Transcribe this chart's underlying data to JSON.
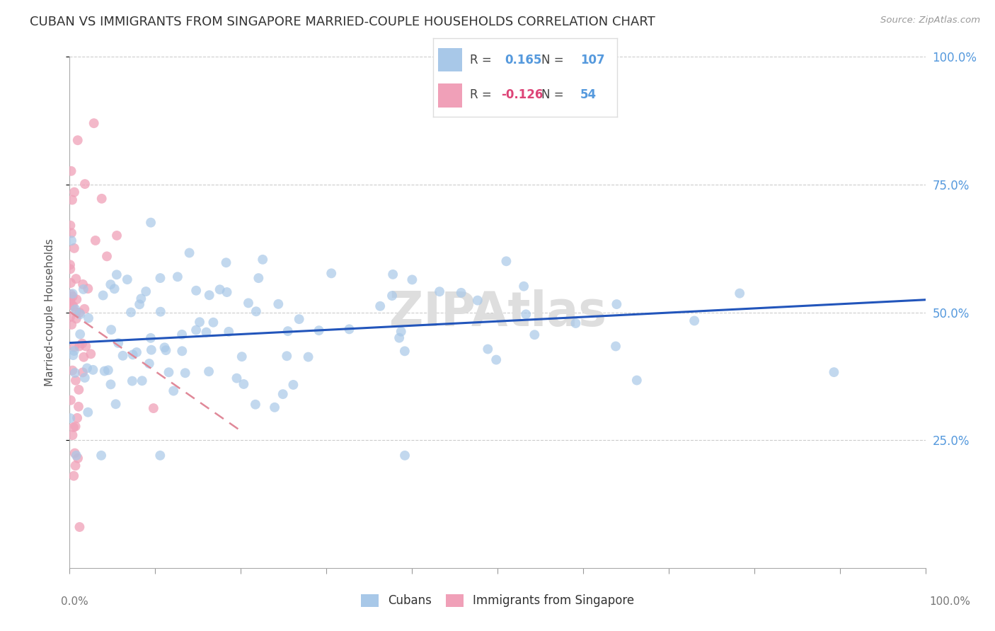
{
  "title": "CUBAN VS IMMIGRANTS FROM SINGAPORE MARRIED-COUPLE HOUSEHOLDS CORRELATION CHART",
  "source": "Source: ZipAtlas.com",
  "ylabel": "Married-couple Households",
  "legend_label1": "Cubans",
  "legend_label2": "Immigrants from Singapore",
  "r1": 0.165,
  "n1": 107,
  "r2": -0.126,
  "n2": 54,
  "color_blue": "#A8C8E8",
  "color_pink": "#F0A0B8",
  "color_blue_text": "#5599DD",
  "color_pink_text": "#DD4477",
  "line_blue": "#2255BB",
  "line_pink": "#E08898",
  "background": "#FFFFFF",
  "watermark": "ZIPAtlas",
  "title_color": "#333333",
  "source_color": "#999999",
  "ylabel_color": "#555555",
  "grid_color": "#CCCCCC",
  "tick_color": "#999999",
  "xtick_color": "#777777"
}
